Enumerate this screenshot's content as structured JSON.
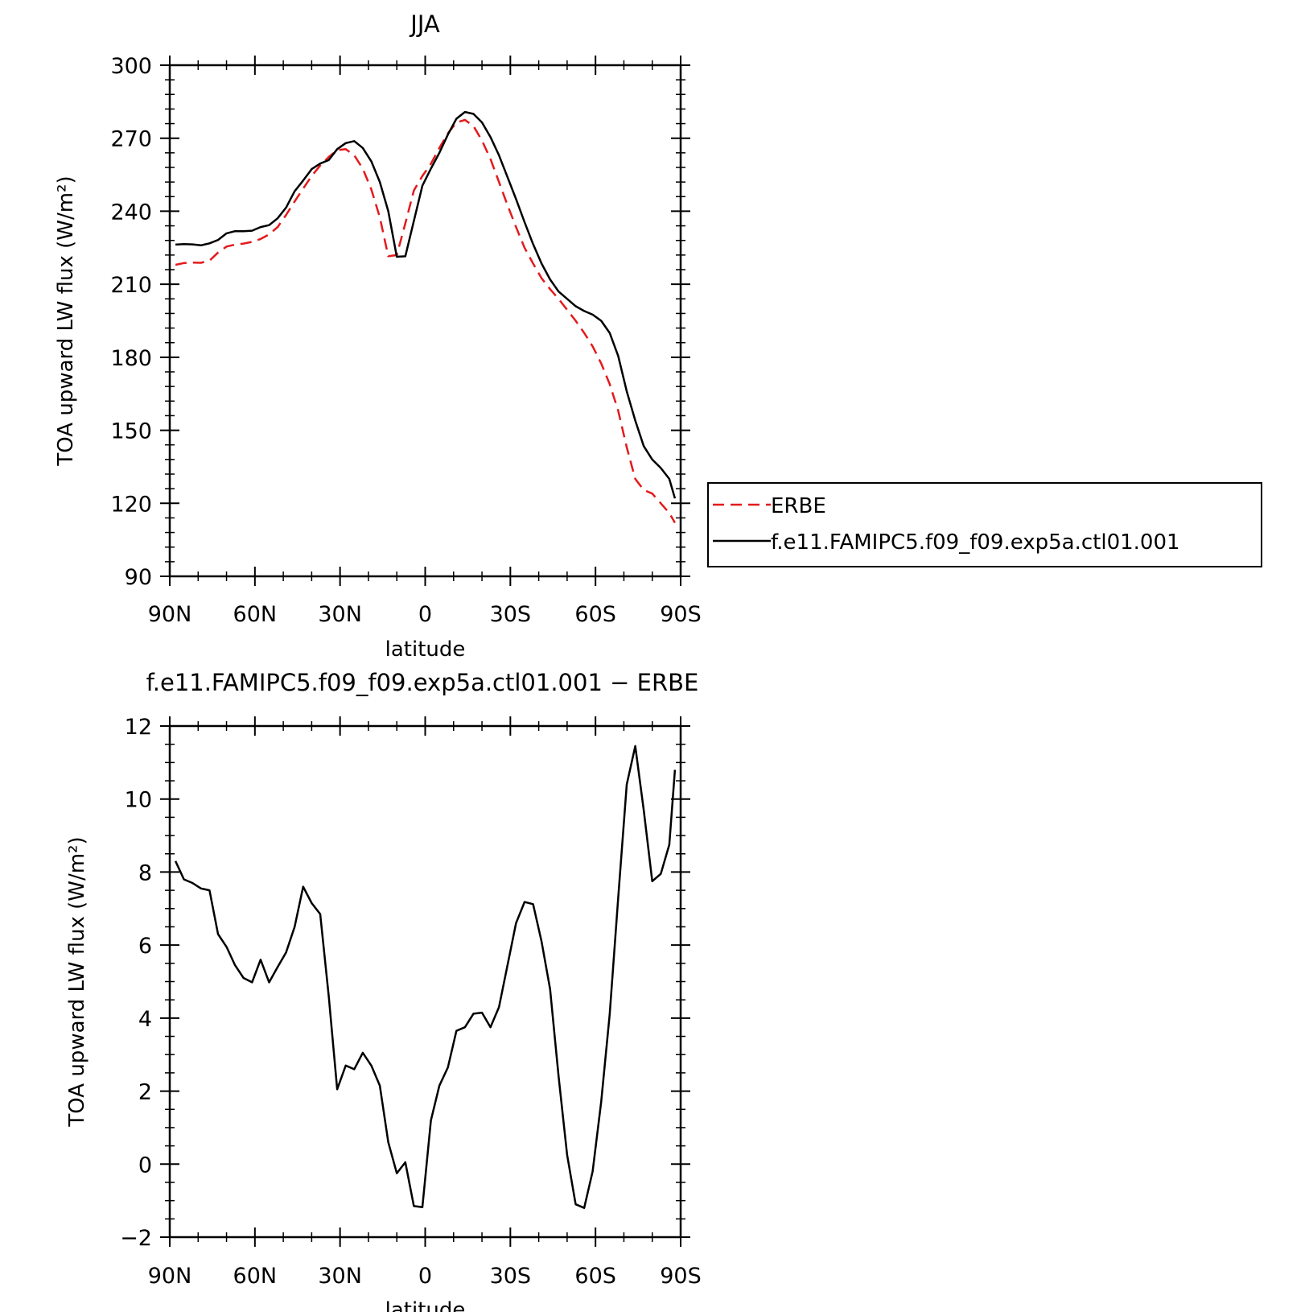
{
  "chart_data": [
    {
      "type": "line",
      "title": "JJA",
      "xlabel": "latitude",
      "ylabel": "TOA upward LW flux (W/m²)",
      "ylim": [
        90,
        300
      ],
      "xlim": [
        90,
        -90
      ],
      "yticks": [
        90,
        120,
        150,
        180,
        210,
        240,
        270,
        300
      ],
      "xticks": [
        {
          "value": 90,
          "label": "90N"
        },
        {
          "value": 60,
          "label": "60N"
        },
        {
          "value": 30,
          "label": "30N"
        },
        {
          "value": 0,
          "label": "0"
        },
        {
          "value": -30,
          "label": "30S"
        },
        {
          "value": -60,
          "label": "60S"
        },
        {
          "value": -90,
          "label": "90S"
        }
      ],
      "legend_position": "right",
      "series": [
        {
          "name": "ERBE",
          "color": "#e41a1c",
          "style": "dashed",
          "x": [
            88,
            85,
            82,
            79,
            76,
            73,
            70,
            67,
            64,
            61,
            58,
            55,
            52,
            49,
            46,
            43,
            40,
            37,
            34,
            31,
            28,
            25,
            22,
            19,
            16,
            13,
            10,
            7,
            4,
            1,
            -2,
            -5,
            -8,
            -11,
            -14,
            -17,
            -20,
            -23,
            -26,
            -29,
            -32,
            -35,
            -38,
            -41,
            -44,
            -47,
            -50,
            -53,
            -56,
            -59,
            -62,
            -65,
            -68,
            -71,
            -74,
            -77,
            -80,
            -83,
            -86,
            -88
          ],
          "y": [
            218,
            218.7,
            218.9,
            218.8,
            219.7,
            223,
            225.5,
            226.3,
            226.7,
            227.4,
            228.6,
            230.5,
            233.5,
            238.5,
            244,
            249.3,
            254.5,
            258.8,
            262.3,
            265.1,
            265.5,
            263,
            257.5,
            249,
            237.5,
            221.5,
            222,
            235,
            248.5,
            254.5,
            259.5,
            266,
            272,
            276.5,
            277.5,
            275,
            269,
            261.5,
            252,
            242.5,
            233.5,
            225,
            218.5,
            212.5,
            208,
            204,
            199.5,
            195,
            190,
            184.5,
            177.5,
            169,
            158,
            143,
            130,
            125.5,
            124,
            120,
            116,
            112
          ]
        },
        {
          "name": "f.e11.FAMIPC5.f09_f09.exp5a.ctl01.001",
          "color": "#000000",
          "style": "solid",
          "x": [
            88,
            85,
            82,
            79,
            76,
            73,
            70,
            67,
            64,
            61,
            58,
            55,
            52,
            49,
            46,
            43,
            40,
            37,
            34,
            31,
            28,
            25,
            22,
            19,
            16,
            13,
            10,
            7,
            4,
            1,
            -2,
            -5,
            -8,
            -11,
            -14,
            -17,
            -20,
            -23,
            -26,
            -29,
            -32,
            -35,
            -38,
            -41,
            -44,
            -47,
            -50,
            -53,
            -56,
            -59,
            -62,
            -65,
            -68,
            -71,
            -74,
            -77,
            -80,
            -83,
            -86,
            -88
          ],
          "y": [
            226.3,
            226.5,
            226.4,
            226,
            226.8,
            228.2,
            230.9,
            231.8,
            231.8,
            232,
            233.5,
            234.3,
            237.1,
            241.5,
            248.2,
            252.6,
            257.3,
            259.6,
            261,
            265.5,
            268,
            268.8,
            266,
            260.5,
            252,
            240,
            221.3,
            221.5,
            236,
            250.5,
            257.5,
            264,
            271.5,
            278,
            280.8,
            280,
            276.5,
            270.5,
            263,
            254,
            245,
            235.5,
            226.5,
            218.5,
            212,
            207,
            204,
            201,
            199,
            197.5,
            195,
            190,
            180.5,
            166,
            154,
            143.5,
            138,
            134.5,
            130,
            122
          ]
        }
      ]
    },
    {
      "type": "line",
      "title": "f.e11.FAMIPC5.f09_f09.exp5a.ctl01.001 − ERBE",
      "xlabel": "latitude",
      "ylabel": "TOA upward LW flux (W/m²)",
      "ylim": [
        -2,
        12
      ],
      "xlim": [
        90,
        -90
      ],
      "yticks": [
        -2,
        0,
        2,
        4,
        6,
        8,
        10,
        12
      ],
      "xticks": [
        {
          "value": 90,
          "label": "90N"
        },
        {
          "value": 60,
          "label": "60N"
        },
        {
          "value": 30,
          "label": "30N"
        },
        {
          "value": 0,
          "label": "0"
        },
        {
          "value": -30,
          "label": "30S"
        },
        {
          "value": -60,
          "label": "60S"
        },
        {
          "value": -90,
          "label": "90S"
        }
      ],
      "series": [
        {
          "color": "#000000",
          "style": "solid",
          "x": [
            88,
            85,
            82,
            79,
            76,
            73,
            70,
            67,
            64,
            61,
            58,
            55,
            52,
            49,
            46,
            43,
            40,
            37,
            34,
            31,
            28,
            25,
            22,
            19,
            16,
            13,
            10,
            7,
            4,
            1,
            -2,
            -5,
            -8,
            -11,
            -14,
            -17,
            -20,
            -23,
            -26,
            -29,
            -32,
            -35,
            -38,
            -41,
            -44,
            -47,
            -50,
            -53,
            -56,
            -59,
            -62,
            -65,
            -68,
            -71,
            -74,
            -77,
            -80,
            -83,
            -86,
            -88
          ],
          "y": [
            8.3,
            7.8,
            7.7,
            7.55,
            7.5,
            6.3,
            5.95,
            5.45,
            5.1,
            4.98,
            5.6,
            4.98,
            5.4,
            5.8,
            6.5,
            7.6,
            7.15,
            6.85,
            4.6,
            2.05,
            2.7,
            2.6,
            3.05,
            2.7,
            2.15,
            0.6,
            -0.25,
            0.05,
            -1.15,
            -1.18,
            1.2,
            2.15,
            2.65,
            3.65,
            3.75,
            4.12,
            4.15,
            3.75,
            4.3,
            5.45,
            6.6,
            7.18,
            7.12,
            6.1,
            4.8,
            2.4,
            0.25,
            -1.1,
            -1.2,
            -0.2,
            1.7,
            4.1,
            7.3,
            10.4,
            11.45,
            9.7,
            7.75,
            7.95,
            8.75,
            10.8
          ]
        }
      ]
    }
  ]
}
